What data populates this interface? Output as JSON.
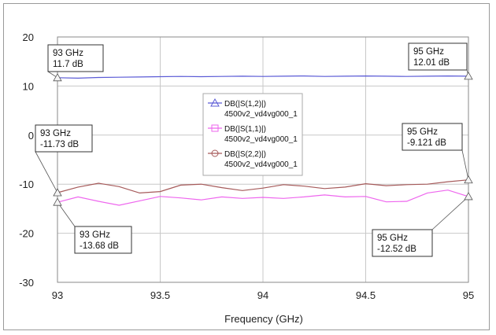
{
  "chart_data": {
    "type": "line",
    "title": "",
    "xlabel": "Frequency (GHz)",
    "ylabel": "",
    "xlim": [
      93,
      95
    ],
    "ylim": [
      -30,
      20
    ],
    "xticks": [
      "93",
      "93.5",
      "94",
      "94.5",
      "95"
    ],
    "yticks": [
      "20",
      "10",
      "0",
      "-10",
      "-20",
      "-30"
    ],
    "grid": true,
    "legend_position": "center",
    "series": [
      {
        "name": "DB(|S(1,2)|)",
        "subname": "4500v2_vd4vg000_1",
        "color": "#5b5bd6",
        "marker": "triangle",
        "x": [
          93,
          93.1,
          93.2,
          93.3,
          93.4,
          93.5,
          93.6,
          93.7,
          93.8,
          93.9,
          94,
          94.1,
          94.2,
          94.3,
          94.4,
          94.5,
          94.6,
          94.7,
          94.8,
          94.9,
          95
        ],
        "values": [
          11.7,
          11.6,
          11.75,
          11.8,
          11.85,
          11.9,
          11.95,
          11.9,
          11.95,
          12.0,
          11.95,
          12.0,
          12.05,
          11.95,
          12.0,
          12.05,
          12.0,
          11.95,
          12.0,
          12.05,
          12.01
        ]
      },
      {
        "name": "DB(|S(1,1)|)",
        "subname": "4500v2_vd4vg000_1",
        "color": "#ee66ee",
        "marker": "square",
        "x": [
          93,
          93.1,
          93.2,
          93.3,
          93.4,
          93.5,
          93.6,
          93.7,
          93.8,
          93.9,
          94,
          94.1,
          94.2,
          94.3,
          94.4,
          94.5,
          94.6,
          94.7,
          94.8,
          94.9,
          95
        ],
        "values": [
          -13.68,
          -12.6,
          -13.5,
          -14.3,
          -13.4,
          -12.5,
          -12.8,
          -13.2,
          -12.6,
          -12.9,
          -12.7,
          -12.9,
          -12.6,
          -12.2,
          -12.6,
          -12.5,
          -13.6,
          -13.5,
          -11.8,
          -11.2,
          -12.52
        ]
      },
      {
        "name": "DB(|S(2,2)|)",
        "subname": "4500v2_vd4vg000_1",
        "color": "#a65a5a",
        "marker": "circle",
        "x": [
          93,
          93.1,
          93.2,
          93.3,
          93.4,
          93.5,
          93.6,
          93.7,
          93.8,
          93.9,
          94,
          94.1,
          94.2,
          94.3,
          94.4,
          94.5,
          94.6,
          94.7,
          94.8,
          94.9,
          95
        ],
        "values": [
          -11.73,
          -10.6,
          -9.8,
          -10.5,
          -11.8,
          -11.5,
          -10.2,
          -10.0,
          -10.7,
          -11.3,
          -10.8,
          -10.1,
          -10.4,
          -10.9,
          -10.6,
          -9.9,
          -10.3,
          -10.1,
          -10.0,
          -9.5,
          -9.121
        ]
      }
    ],
    "annotations": [
      {
        "freq": "93 GHz",
        "value": "11.7 dB",
        "x": 93,
        "y": 11.7,
        "series": 0
      },
      {
        "freq": "95 GHz",
        "value": "12.01 dB",
        "x": 95,
        "y": 12.01,
        "series": 0
      },
      {
        "freq": "93 GHz",
        "value": "-11.73 dB",
        "x": 93,
        "y": -11.73,
        "series": 2
      },
      {
        "freq": "95 GHz",
        "value": "-9.121 dB",
        "x": 95,
        "y": -9.121,
        "series": 2
      },
      {
        "freq": "93 GHz",
        "value": "-13.68 dB",
        "x": 93,
        "y": -13.68,
        "series": 1
      },
      {
        "freq": "95 GHz",
        "value": "-12.52 dB",
        "x": 95,
        "y": -12.52,
        "series": 1
      }
    ]
  }
}
